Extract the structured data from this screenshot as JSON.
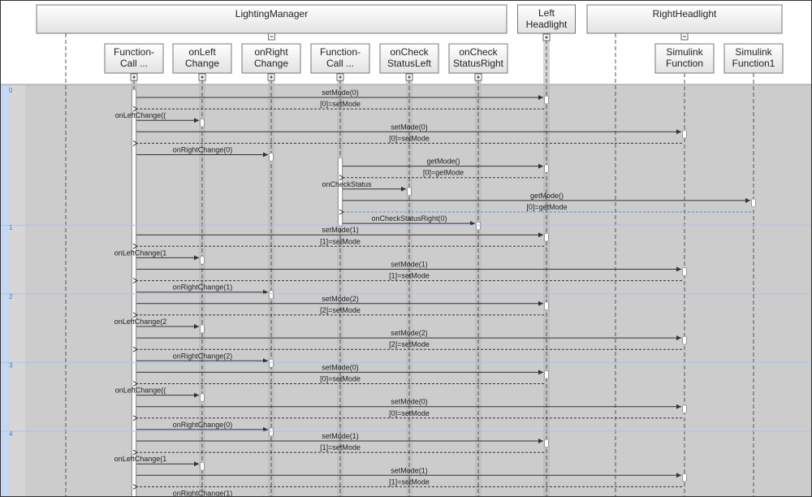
{
  "colors": {
    "canvas": "#cccccc",
    "time_strip": "#d6d6d6",
    "left_strip": "#c5d7f2",
    "time_divider": "#a8c4ee",
    "highlight": "#4a90e2",
    "line": "#333333"
  },
  "lifelines": [
    {
      "id": "lm",
      "label": "LightingManager",
      "kind": "group",
      "toggle": "minus"
    },
    {
      "id": "fc1",
      "label": "Function-\nCall ...",
      "kind": "child",
      "toggle": "plus"
    },
    {
      "id": "olc",
      "label": "onLeft\nChange",
      "kind": "child",
      "toggle": "plus"
    },
    {
      "id": "orc",
      "label": "onRight\nChange",
      "kind": "child",
      "toggle": "plus"
    },
    {
      "id": "fc2",
      "label": "Function-\nCall ...",
      "kind": "child",
      "toggle": "plus"
    },
    {
      "id": "ocsl",
      "label": "onCheck\nStatusLeft",
      "kind": "child",
      "toggle": "plus"
    },
    {
      "id": "ocsr",
      "label": "onCheck\nStatusRight",
      "kind": "child",
      "toggle": "plus"
    },
    {
      "id": "lh",
      "label": "Left\nHeadlight",
      "kind": "top",
      "toggle": "plus"
    },
    {
      "id": "rh",
      "label": "RightHeadlight",
      "kind": "group",
      "toggle": "minus"
    },
    {
      "id": "sf",
      "label": "Simulink\nFunction",
      "kind": "child"
    },
    {
      "id": "sf1",
      "label": "Simulink\nFunction1",
      "kind": "child"
    }
  ],
  "time_steps": [
    {
      "label": "0",
      "messages": [
        {
          "from": "fc1",
          "to": "lh",
          "label": "setMode(0)",
          "type": "call"
        },
        {
          "from": "lh",
          "to": "fc1",
          "label": "[0]=setMode",
          "type": "return"
        },
        {
          "from": "fc1",
          "to": "olc",
          "label": "onLeftChange((",
          "type": "call"
        },
        {
          "from": "fc1",
          "to": "sf",
          "label": "setMode(0)",
          "type": "call"
        },
        {
          "from": "sf",
          "to": "fc1",
          "label": "[0]=setMode",
          "type": "return"
        },
        {
          "from": "fc1",
          "to": "orc",
          "label": "onRightChange(0)",
          "type": "call"
        },
        {
          "from": "fc2",
          "to": "lh",
          "label": "getMode()",
          "type": "call"
        },
        {
          "from": "lh",
          "to": "fc2",
          "label": "[0]=getMode",
          "type": "return"
        },
        {
          "from": "fc2",
          "to": "ocsl",
          "label": "onCheckStatus",
          "type": "call"
        },
        {
          "from": "fc2",
          "to": "sf1",
          "label": "getMode()",
          "type": "call"
        },
        {
          "from": "sf1",
          "to": "fc2",
          "label": "[0]=getMode",
          "type": "return",
          "selected": true
        },
        {
          "from": "fc2",
          "to": "ocsr",
          "label": "onCheckStatusRight(0)",
          "type": "call"
        }
      ]
    },
    {
      "label": "1",
      "messages": [
        {
          "from": "fc1",
          "to": "lh",
          "label": "setMode(1)",
          "type": "call"
        },
        {
          "from": "lh",
          "to": "fc1",
          "label": "[1]=setMode",
          "type": "return"
        },
        {
          "from": "fc1",
          "to": "olc",
          "label": "onLeftChange(1",
          "type": "call"
        },
        {
          "from": "fc1",
          "to": "sf",
          "label": "setMode(1)",
          "type": "call"
        },
        {
          "from": "sf",
          "to": "fc1",
          "label": "[1]=setMode",
          "type": "return"
        },
        {
          "from": "fc1",
          "to": "orc",
          "label": "onRightChange(1)",
          "type": "call"
        }
      ]
    },
    {
      "label": "2",
      "messages": [
        {
          "from": "fc1",
          "to": "lh",
          "label": "setMode(2)",
          "type": "call"
        },
        {
          "from": "lh",
          "to": "fc1",
          "label": "[2]=setMode",
          "type": "return"
        },
        {
          "from": "fc1",
          "to": "olc",
          "label": "onLeftChange(2",
          "type": "call"
        },
        {
          "from": "fc1",
          "to": "sf",
          "label": "setMode(2)",
          "type": "call"
        },
        {
          "from": "sf",
          "to": "fc1",
          "label": "[2]=setMode",
          "type": "return"
        },
        {
          "from": "fc1",
          "to": "orc",
          "label": "onRightChange(2)",
          "type": "call"
        }
      ]
    },
    {
      "label": "3",
      "messages": [
        {
          "from": "fc1",
          "to": "lh",
          "label": "setMode(0)",
          "type": "call"
        },
        {
          "from": "lh",
          "to": "fc1",
          "label": "[0]=setMode",
          "type": "return"
        },
        {
          "from": "fc1",
          "to": "olc",
          "label": "onLeftChange((",
          "type": "call"
        },
        {
          "from": "fc1",
          "to": "sf",
          "label": "setMode(0)",
          "type": "call"
        },
        {
          "from": "sf",
          "to": "fc1",
          "label": "[0]=setMode",
          "type": "return"
        },
        {
          "from": "fc1",
          "to": "orc",
          "label": "onRightChange(0)",
          "type": "call"
        }
      ]
    },
    {
      "label": "4",
      "messages": [
        {
          "from": "fc1",
          "to": "lh",
          "label": "setMode(1)",
          "type": "call"
        },
        {
          "from": "lh",
          "to": "fc1",
          "label": "[1]=setMode",
          "type": "return"
        },
        {
          "from": "fc1",
          "to": "olc",
          "label": "onLeftChange(1",
          "type": "call"
        },
        {
          "from": "fc1",
          "to": "sf",
          "label": "setMode(1)",
          "type": "call"
        },
        {
          "from": "sf",
          "to": "fc1",
          "label": "[1]=setMode",
          "type": "return"
        },
        {
          "from": "fc1",
          "to": "orc",
          "label": "onRightChange(1)",
          "type": "call"
        }
      ]
    }
  ]
}
